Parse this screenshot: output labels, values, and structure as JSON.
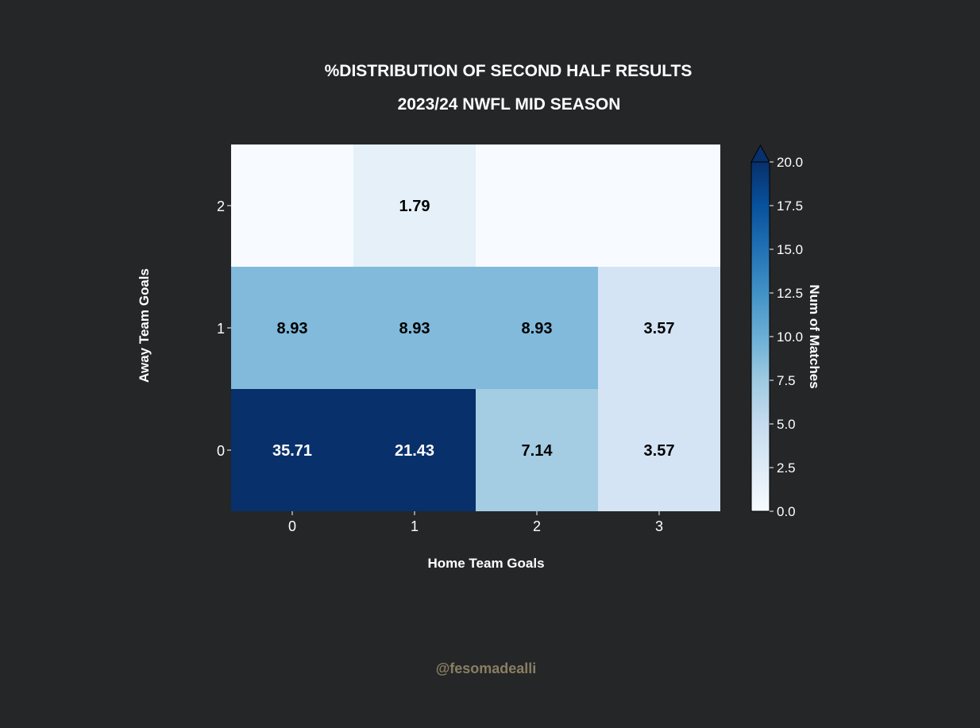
{
  "chart_data": {
    "type": "heatmap",
    "title": "%DISTRIBUTION OF SECOND HALF RESULTS",
    "subtitle": "2023/24 NWFL MID SEASON",
    "xlabel": "Home Team Goals",
    "ylabel": "Away Team Goals",
    "x_categories": [
      "0",
      "1",
      "2",
      "3"
    ],
    "y_categories": [
      "0",
      "1",
      "2"
    ],
    "cells": [
      {
        "home": 0,
        "away": 0,
        "value": 35.71,
        "label": "35.71"
      },
      {
        "home": 1,
        "away": 0,
        "value": 21.43,
        "label": "21.43"
      },
      {
        "home": 2,
        "away": 0,
        "value": 7.14,
        "label": "7.14"
      },
      {
        "home": 3,
        "away": 0,
        "value": 3.57,
        "label": "3.57"
      },
      {
        "home": 0,
        "away": 1,
        "value": 8.93,
        "label": "8.93"
      },
      {
        "home": 1,
        "away": 1,
        "value": 8.93,
        "label": "8.93"
      },
      {
        "home": 2,
        "away": 1,
        "value": 8.93,
        "label": "8.93"
      },
      {
        "home": 3,
        "away": 1,
        "value": 3.57,
        "label": "3.57"
      },
      {
        "home": 0,
        "away": 2,
        "value": 0,
        "label": ""
      },
      {
        "home": 1,
        "away": 2,
        "value": 1.79,
        "label": "1.79"
      },
      {
        "home": 2,
        "away": 2,
        "value": 0,
        "label": ""
      },
      {
        "home": 3,
        "away": 2,
        "value": 0,
        "label": ""
      }
    ],
    "colorbar": {
      "label": "Num of Matches",
      "range": [
        0,
        20
      ],
      "ticks": [
        "0.0",
        "2.5",
        "5.0",
        "7.5",
        "10.0",
        "12.5",
        "15.0",
        "17.5",
        "20.0"
      ],
      "extend": "max",
      "colormap": "Blues"
    }
  },
  "credit": "@fesomadealli",
  "colors": {
    "background": "#252628",
    "text": "#ffffff",
    "credit": "#8a7f63"
  }
}
